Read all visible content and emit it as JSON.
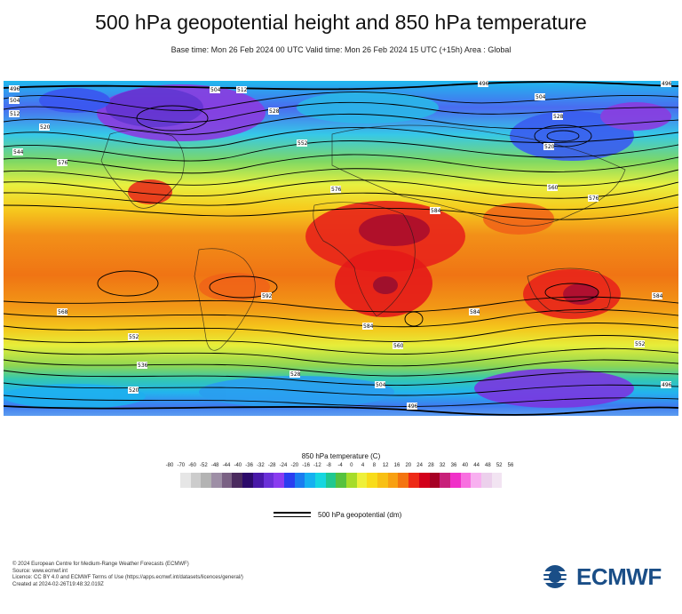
{
  "title": "500 hPa geopotential height and 850 hPa temperature",
  "subtitle": "Base time: Mon 26 Feb 2024 00 UTC Valid time: Mon 26 Feb 2024 15 UTC (+15h) Area : Global",
  "map": {
    "contour_labels": [
      "496",
      "504",
      "512",
      "520",
      "528",
      "536",
      "544",
      "552",
      "560",
      "568",
      "576",
      "584",
      "592"
    ],
    "band_colors": [
      "#1ea7e8",
      "#2bd0f0",
      "#7be07a",
      "#e8f040",
      "#f5d11e",
      "#f8a012",
      "#f06e0c",
      "#e8241a",
      "#c2001c"
    ],
    "cold_pool_colors": [
      "#6a3ad8",
      "#8a2ee0"
    ]
  },
  "legend": {
    "title": "850 hPa temperature (C)",
    "ticks": [
      "-80",
      "-70",
      "-60",
      "-52",
      "-48",
      "-44",
      "-40",
      "-36",
      "-32",
      "-28",
      "-24",
      "-20",
      "-16",
      "-12",
      "-8",
      "-4",
      "0",
      "4",
      "8",
      "12",
      "16",
      "20",
      "24",
      "28",
      "32",
      "36",
      "40",
      "44",
      "48",
      "52",
      "56"
    ],
    "colors": [
      "#e6e6e6",
      "#cccccc",
      "#b3b3b3",
      "#9e8fa6",
      "#7a6184",
      "#4a2a5e",
      "#2c0a6a",
      "#4818a8",
      "#6a30d8",
      "#8a3cf0",
      "#2a3ef0",
      "#1a7cf0",
      "#16b0f0",
      "#16d6e0",
      "#20c890",
      "#56c23e",
      "#a6dc2a",
      "#eef03a",
      "#f8dc1a",
      "#f8c014",
      "#f8a012",
      "#f47410",
      "#ee2a16",
      "#d2001a",
      "#a60024",
      "#c8207a",
      "#f030c8",
      "#f870e0",
      "#f8b0f0",
      "#ecd0ec",
      "#f2e4f2"
    ],
    "contour_label": "500 hPa geopotential (dm)"
  },
  "footer": [
    "© 2024 European Centre for Medium-Range Weather Forecasts (ECMWF)",
    "Source: www.ecmwf.int",
    "Licence: CC BY 4.0 and ECMWF Terms of Use (https://apps.ecmwf.int/datasets/licences/general/)",
    "Created at 2024-02-26T19:48:32.019Z"
  ],
  "logo_text": "ECMWF"
}
